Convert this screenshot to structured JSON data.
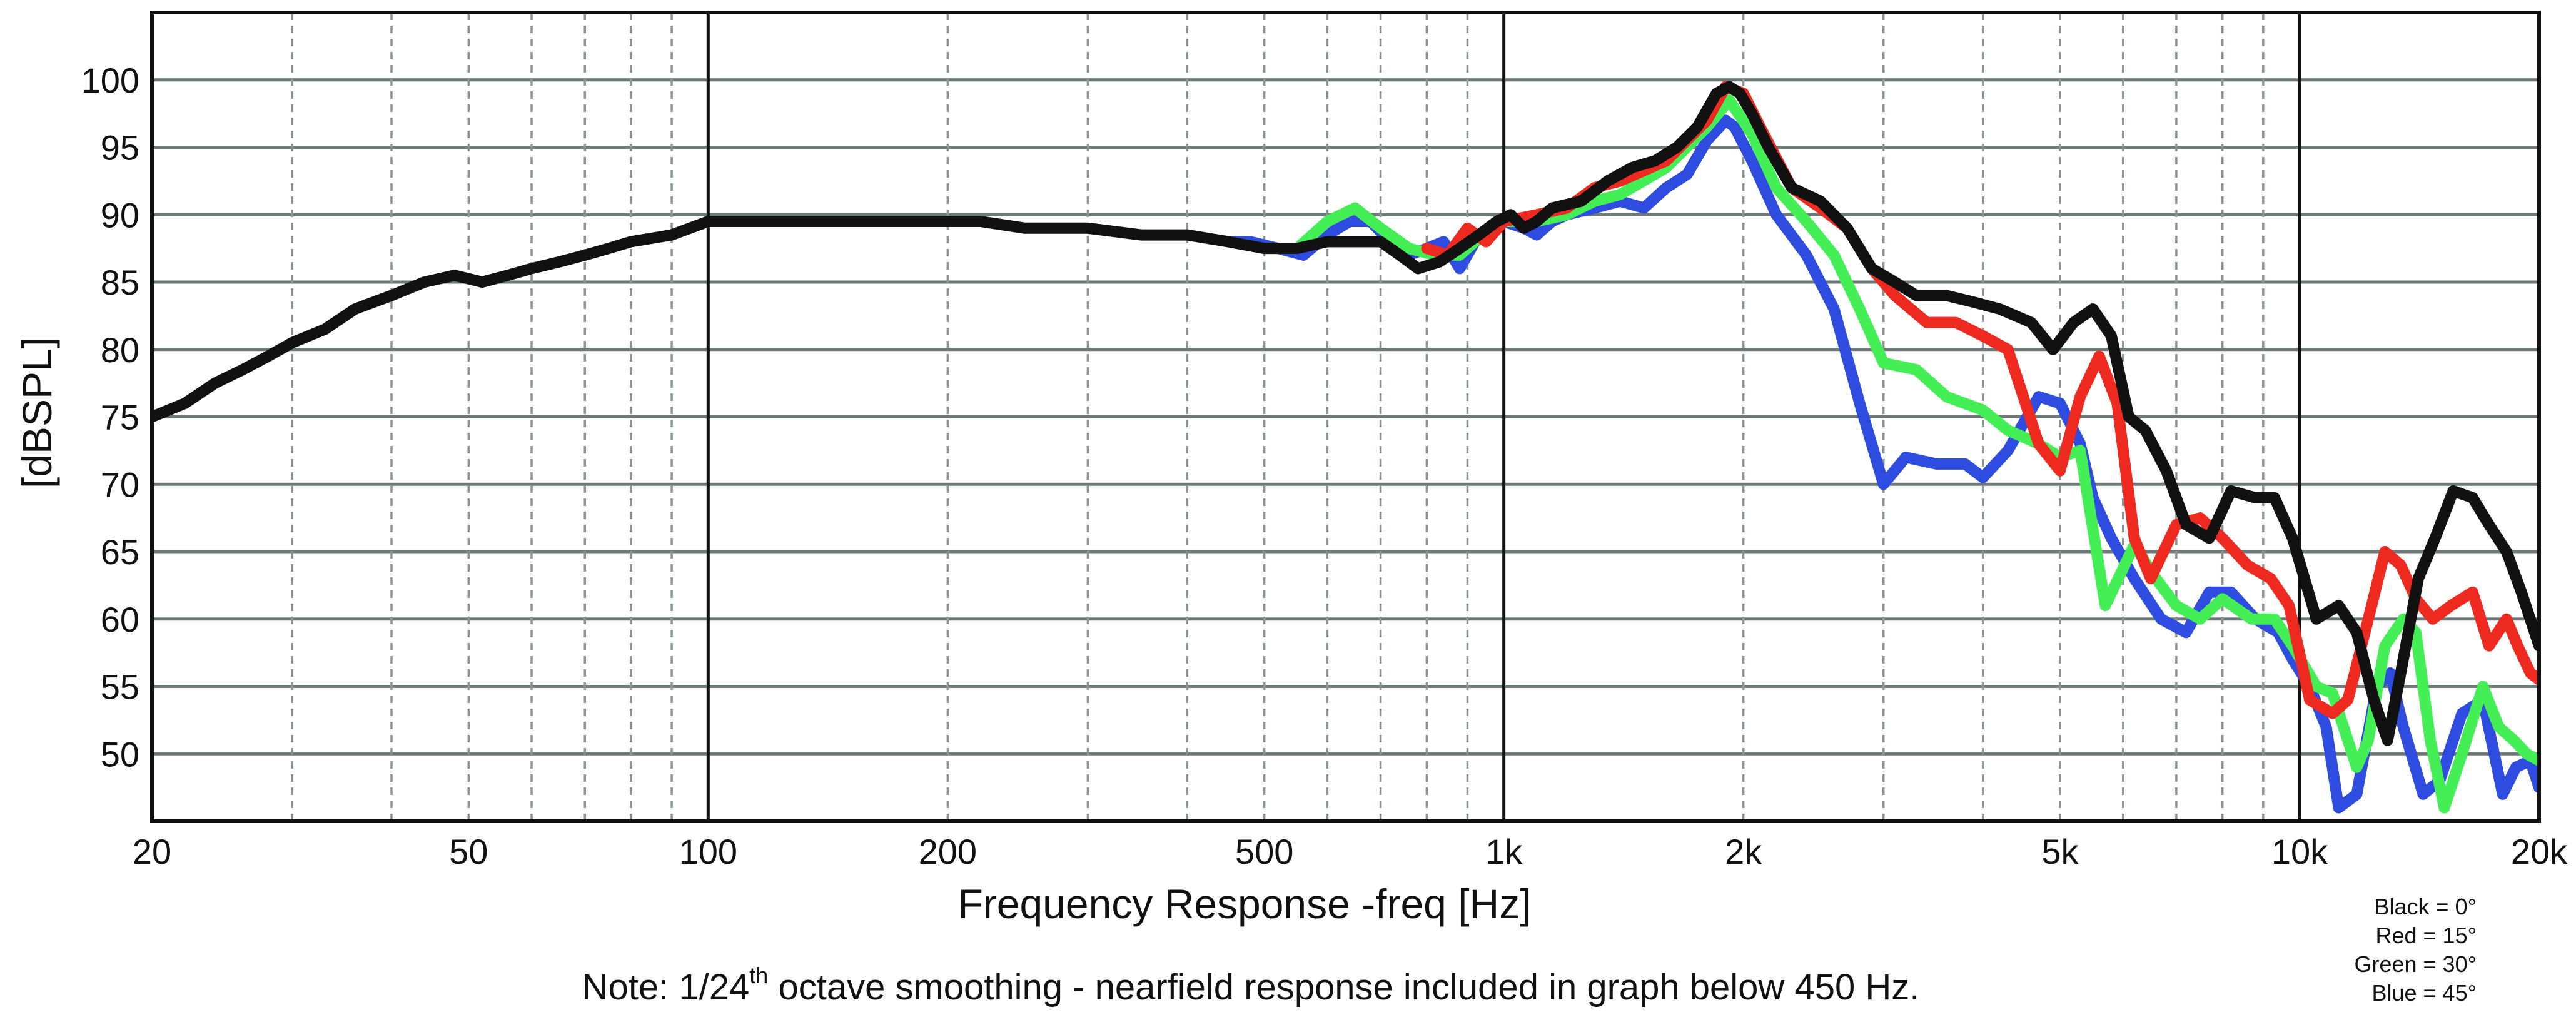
{
  "chart_data": {
    "type": "line",
    "xscale": "log",
    "xlabel": "Frequency Response -freq [Hz]",
    "ylabel": "[dBSPL]",
    "xlim": [
      20,
      20000
    ],
    "ylim": [
      45,
      105
    ],
    "x_ticks": [
      {
        "value": 20,
        "label": "20"
      },
      {
        "value": 50,
        "label": "50"
      },
      {
        "value": 100,
        "label": "100"
      },
      {
        "value": 200,
        "label": "200"
      },
      {
        "value": 500,
        "label": "500"
      },
      {
        "value": 1000,
        "label": "1k"
      },
      {
        "value": 2000,
        "label": "2k"
      },
      {
        "value": 5000,
        "label": "5k"
      },
      {
        "value": 10000,
        "label": "10k"
      },
      {
        "value": 20000,
        "label": "20k"
      }
    ],
    "y_ticks": [
      {
        "value": 50,
        "label": "50"
      },
      {
        "value": 55,
        "label": "55"
      },
      {
        "value": 60,
        "label": "60"
      },
      {
        "value": 65,
        "label": "65"
      },
      {
        "value": 70,
        "label": "70"
      },
      {
        "value": 75,
        "label": "75"
      },
      {
        "value": 80,
        "label": "80"
      },
      {
        "value": 85,
        "label": "85"
      },
      {
        "value": 90,
        "label": "90"
      },
      {
        "value": 95,
        "label": "95"
      },
      {
        "value": 100,
        "label": "100"
      }
    ],
    "grid": true,
    "legend_placement": "bottom-right",
    "legend": [
      "Black = 0°",
      "Red = 15°",
      "Green = 30°",
      "Blue = 45°"
    ],
    "note": {
      "before": "Note: 1/24",
      "superscript": "th",
      "after": " octave smoothing - nearfield response included in graph below 450 Hz."
    },
    "series": [
      {
        "color": "#2e4ce0",
        "points": [
          [
            450,
            88
          ],
          [
            480,
            88
          ],
          [
            520,
            87.5
          ],
          [
            560,
            87
          ],
          [
            600,
            88.5
          ],
          [
            640,
            89.5
          ],
          [
            680,
            89.5
          ],
          [
            720,
            88
          ],
          [
            760,
            87
          ],
          [
            800,
            87.5
          ],
          [
            840,
            88
          ],
          [
            880,
            86
          ],
          [
            920,
            88
          ],
          [
            960,
            89
          ],
          [
            1000,
            89.5
          ],
          [
            1060,
            89
          ],
          [
            1100,
            88.5
          ],
          [
            1150,
            89.5
          ],
          [
            1200,
            90
          ],
          [
            1300,
            90.5
          ],
          [
            1400,
            91
          ],
          [
            1500,
            90.5
          ],
          [
            1600,
            92
          ],
          [
            1700,
            93
          ],
          [
            1800,
            95.5
          ],
          [
            1900,
            97
          ],
          [
            1950,
            96.5
          ],
          [
            2050,
            94
          ],
          [
            2200,
            90
          ],
          [
            2400,
            87
          ],
          [
            2600,
            83
          ],
          [
            2800,
            76
          ],
          [
            3000,
            70
          ],
          [
            3200,
            72
          ],
          [
            3500,
            71.5
          ],
          [
            3800,
            71.5
          ],
          [
            4000,
            70.5
          ],
          [
            4300,
            72.5
          ],
          [
            4700,
            76.5
          ],
          [
            5000,
            76
          ],
          [
            5300,
            73
          ],
          [
            5500,
            69
          ],
          [
            5800,
            66
          ],
          [
            6200,
            63
          ],
          [
            6700,
            60
          ],
          [
            7200,
            59
          ],
          [
            7700,
            62
          ],
          [
            8200,
            62
          ],
          [
            8800,
            60
          ],
          [
            9400,
            59
          ],
          [
            9800,
            57
          ],
          [
            10300,
            55
          ],
          [
            10800,
            52
          ],
          [
            11200,
            46
          ],
          [
            11800,
            47
          ],
          [
            12500,
            55
          ],
          [
            13000,
            56
          ],
          [
            13500,
            52
          ],
          [
            14300,
            47
          ],
          [
            15000,
            48
          ],
          [
            16000,
            53
          ],
          [
            17000,
            54
          ],
          [
            18000,
            47
          ],
          [
            18700,
            49
          ],
          [
            19500,
            49.5
          ],
          [
            20000,
            47.5
          ]
        ]
      },
      {
        "color": "#44ee55",
        "points": [
          [
            450,
            88
          ],
          [
            500,
            87.5
          ],
          [
            550,
            87.5
          ],
          [
            600,
            89.5
          ],
          [
            650,
            90.5
          ],
          [
            700,
            89
          ],
          [
            760,
            87.5
          ],
          [
            820,
            87
          ],
          [
            880,
            87
          ],
          [
            940,
            88.5
          ],
          [
            1000,
            89.5
          ],
          [
            1100,
            89.5
          ],
          [
            1200,
            90
          ],
          [
            1300,
            91
          ],
          [
            1400,
            91.5
          ],
          [
            1600,
            93.5
          ],
          [
            1800,
            96.5
          ],
          [
            1920,
            98.5
          ],
          [
            2050,
            96
          ],
          [
            2200,
            92
          ],
          [
            2400,
            89.5
          ],
          [
            2600,
            87
          ],
          [
            2800,
            83
          ],
          [
            3000,
            79
          ],
          [
            3300,
            78.5
          ],
          [
            3600,
            76.5
          ],
          [
            4000,
            75.5
          ],
          [
            4300,
            74
          ],
          [
            4700,
            73
          ],
          [
            5000,
            72
          ],
          [
            5300,
            72.5
          ],
          [
            5700,
            61
          ],
          [
            6200,
            65.5
          ],
          [
            6600,
            63
          ],
          [
            7000,
            61
          ],
          [
            7500,
            60
          ],
          [
            8000,
            61.5
          ],
          [
            8700,
            60
          ],
          [
            9300,
            60
          ],
          [
            9800,
            58
          ],
          [
            10500,
            55
          ],
          [
            11000,
            54.5
          ],
          [
            11800,
            49
          ],
          [
            12200,
            51
          ],
          [
            12800,
            58
          ],
          [
            13500,
            60
          ],
          [
            14000,
            59
          ],
          [
            14600,
            51
          ],
          [
            15200,
            46
          ],
          [
            16000,
            50
          ],
          [
            17000,
            55
          ],
          [
            17800,
            52
          ],
          [
            18600,
            51
          ],
          [
            19300,
            50
          ],
          [
            20000,
            49.5
          ]
        ]
      },
      {
        "color": "#ee2a20",
        "points": [
          [
            800,
            87.5
          ],
          [
            850,
            87
          ],
          [
            900,
            89
          ],
          [
            950,
            88
          ],
          [
            1000,
            89.5
          ],
          [
            1100,
            90
          ],
          [
            1200,
            90.5
          ],
          [
            1300,
            92
          ],
          [
            1400,
            92.5
          ],
          [
            1600,
            94
          ],
          [
            1800,
            97
          ],
          [
            1900,
            99.5
          ],
          [
            2000,
            99
          ],
          [
            2100,
            96.5
          ],
          [
            2300,
            92
          ],
          [
            2500,
            90.5
          ],
          [
            2700,
            89
          ],
          [
            2900,
            86
          ],
          [
            3100,
            84
          ],
          [
            3400,
            82
          ],
          [
            3700,
            82
          ],
          [
            4000,
            81
          ],
          [
            4300,
            80
          ],
          [
            4700,
            73
          ],
          [
            5000,
            71
          ],
          [
            5300,
            76.5
          ],
          [
            5600,
            79.5
          ],
          [
            5900,
            76
          ],
          [
            6200,
            66
          ],
          [
            6500,
            63
          ],
          [
            7000,
            67
          ],
          [
            7500,
            67.5
          ],
          [
            8000,
            66
          ],
          [
            8600,
            64
          ],
          [
            9200,
            63
          ],
          [
            9700,
            61
          ],
          [
            10300,
            54
          ],
          [
            11000,
            53
          ],
          [
            11500,
            54
          ],
          [
            12200,
            60
          ],
          [
            12800,
            65
          ],
          [
            13400,
            64
          ],
          [
            14000,
            61.5
          ],
          [
            14700,
            60
          ],
          [
            15500,
            61
          ],
          [
            16500,
            62
          ],
          [
            17300,
            58
          ],
          [
            18200,
            60
          ],
          [
            18800,
            58
          ],
          [
            19500,
            56
          ],
          [
            20000,
            55.5
          ]
        ]
      },
      {
        "color": "#111111",
        "points": [
          [
            20,
            75
          ],
          [
            22,
            76
          ],
          [
            24,
            77.5
          ],
          [
            26,
            78.5
          ],
          [
            28,
            79.5
          ],
          [
            30,
            80.5
          ],
          [
            33,
            81.5
          ],
          [
            36,
            83
          ],
          [
            40,
            84
          ],
          [
            44,
            85
          ],
          [
            48,
            85.5
          ],
          [
            52,
            85
          ],
          [
            56,
            85.5
          ],
          [
            60,
            86
          ],
          [
            65,
            86.5
          ],
          [
            70,
            87
          ],
          [
            75,
            87.5
          ],
          [
            80,
            88
          ],
          [
            90,
            88.5
          ],
          [
            100,
            89.5
          ],
          [
            110,
            89.5
          ],
          [
            120,
            89.5
          ],
          [
            130,
            89.5
          ],
          [
            140,
            89.5
          ],
          [
            150,
            89.5
          ],
          [
            170,
            89.5
          ],
          [
            200,
            89.5
          ],
          [
            220,
            89.5
          ],
          [
            250,
            89
          ],
          [
            280,
            89
          ],
          [
            300,
            89
          ],
          [
            350,
            88.5
          ],
          [
            400,
            88.5
          ],
          [
            450,
            88
          ],
          [
            500,
            87.5
          ],
          [
            550,
            87.5
          ],
          [
            600,
            88
          ],
          [
            650,
            88
          ],
          [
            700,
            88
          ],
          [
            740,
            87
          ],
          [
            780,
            86
          ],
          [
            830,
            86.5
          ],
          [
            880,
            87.5
          ],
          [
            930,
            88.5
          ],
          [
            980,
            89.5
          ],
          [
            1020,
            90
          ],
          [
            1060,
            89
          ],
          [
            1100,
            89.5
          ],
          [
            1150,
            90.5
          ],
          [
            1250,
            91
          ],
          [
            1350,
            92.5
          ],
          [
            1450,
            93.5
          ],
          [
            1550,
            94
          ],
          [
            1650,
            95
          ],
          [
            1750,
            96.5
          ],
          [
            1850,
            99
          ],
          [
            1920,
            99.5
          ],
          [
            1980,
            99
          ],
          [
            2050,
            97.5
          ],
          [
            2150,
            95
          ],
          [
            2300,
            92
          ],
          [
            2500,
            91
          ],
          [
            2700,
            89
          ],
          [
            2900,
            86
          ],
          [
            3100,
            85
          ],
          [
            3300,
            84
          ],
          [
            3600,
            84
          ],
          [
            3900,
            83.5
          ],
          [
            4200,
            83
          ],
          [
            4600,
            82
          ],
          [
            4900,
            80
          ],
          [
            5200,
            82
          ],
          [
            5500,
            83
          ],
          [
            5800,
            81
          ],
          [
            6100,
            75
          ],
          [
            6400,
            74
          ],
          [
            6800,
            71
          ],
          [
            7200,
            67
          ],
          [
            7700,
            66
          ],
          [
            8200,
            69.5
          ],
          [
            8800,
            69
          ],
          [
            9300,
            69
          ],
          [
            9800,
            66
          ],
          [
            10500,
            60
          ],
          [
            11200,
            61
          ],
          [
            11800,
            59
          ],
          [
            12400,
            54
          ],
          [
            12900,
            51
          ],
          [
            13400,
            56
          ],
          [
            14100,
            63
          ],
          [
            14800,
            66
          ],
          [
            15600,
            69.5
          ],
          [
            16500,
            69
          ],
          [
            17300,
            67
          ],
          [
            18200,
            65
          ],
          [
            19000,
            62
          ],
          [
            20000,
            58
          ]
        ]
      }
    ]
  }
}
